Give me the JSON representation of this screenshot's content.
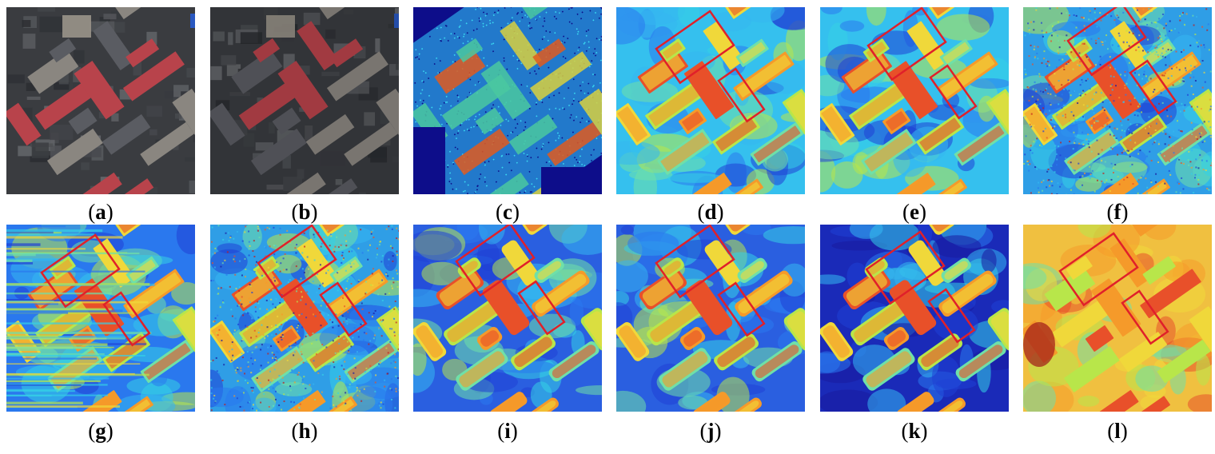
{
  "figure": {
    "panels": [
      {
        "id": "a",
        "label": "a",
        "type": "rgb"
      },
      {
        "id": "b",
        "label": "b",
        "type": "rgb"
      },
      {
        "id": "c",
        "label": "c",
        "type": "points"
      },
      {
        "id": "d",
        "label": "d",
        "type": "height",
        "boxes": true
      },
      {
        "id": "e",
        "label": "e",
        "type": "height",
        "boxes": true
      },
      {
        "id": "f",
        "label": "f",
        "type": "height-noisy",
        "boxes": true
      },
      {
        "id": "g",
        "label": "g",
        "type": "height-streak",
        "boxes": true
      },
      {
        "id": "h",
        "label": "h",
        "type": "height-noisy",
        "boxes": true
      },
      {
        "id": "i",
        "label": "i",
        "type": "height-smooth",
        "boxes": true
      },
      {
        "id": "j",
        "label": "j",
        "type": "height-smooth",
        "boxes": true
      },
      {
        "id": "k",
        "label": "k",
        "type": "height-dark",
        "boxes": true
      },
      {
        "id": "l",
        "label": "l",
        "type": "height-warm",
        "boxes": true
      }
    ],
    "colors": {
      "box": "#e0202a",
      "jet_low": "#1a1a9e",
      "jet_mid": "#35d0e6",
      "jet_high": "#e8281e"
    }
  }
}
